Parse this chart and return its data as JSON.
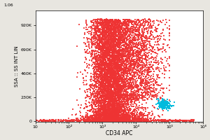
{
  "xlabel": "CD34 APC",
  "ylabel": "SSA :: SS INT LIN",
  "red_color": "#EE3333",
  "cyan_color": "#00BBDD",
  "background_color": "#E8E6E0",
  "plot_bg": "#FFFFFF",
  "n_red": 9000,
  "n_cyan": 180,
  "seed": 77,
  "ytick_vals": [
    0,
    230000,
    460000,
    690000,
    920000
  ],
  "ytick_labels": [
    "0",
    "230K",
    "460K",
    "690K",
    "920K"
  ],
  "ytop_label": "1.06↑",
  "xtick_positions": [
    10,
    100,
    1000,
    10000,
    100000,
    1000000
  ],
  "xtick_labels": [
    "10",
    "10²",
    "10³",
    "10⁴",
    "10⁵",
    "10⁶"
  ]
}
